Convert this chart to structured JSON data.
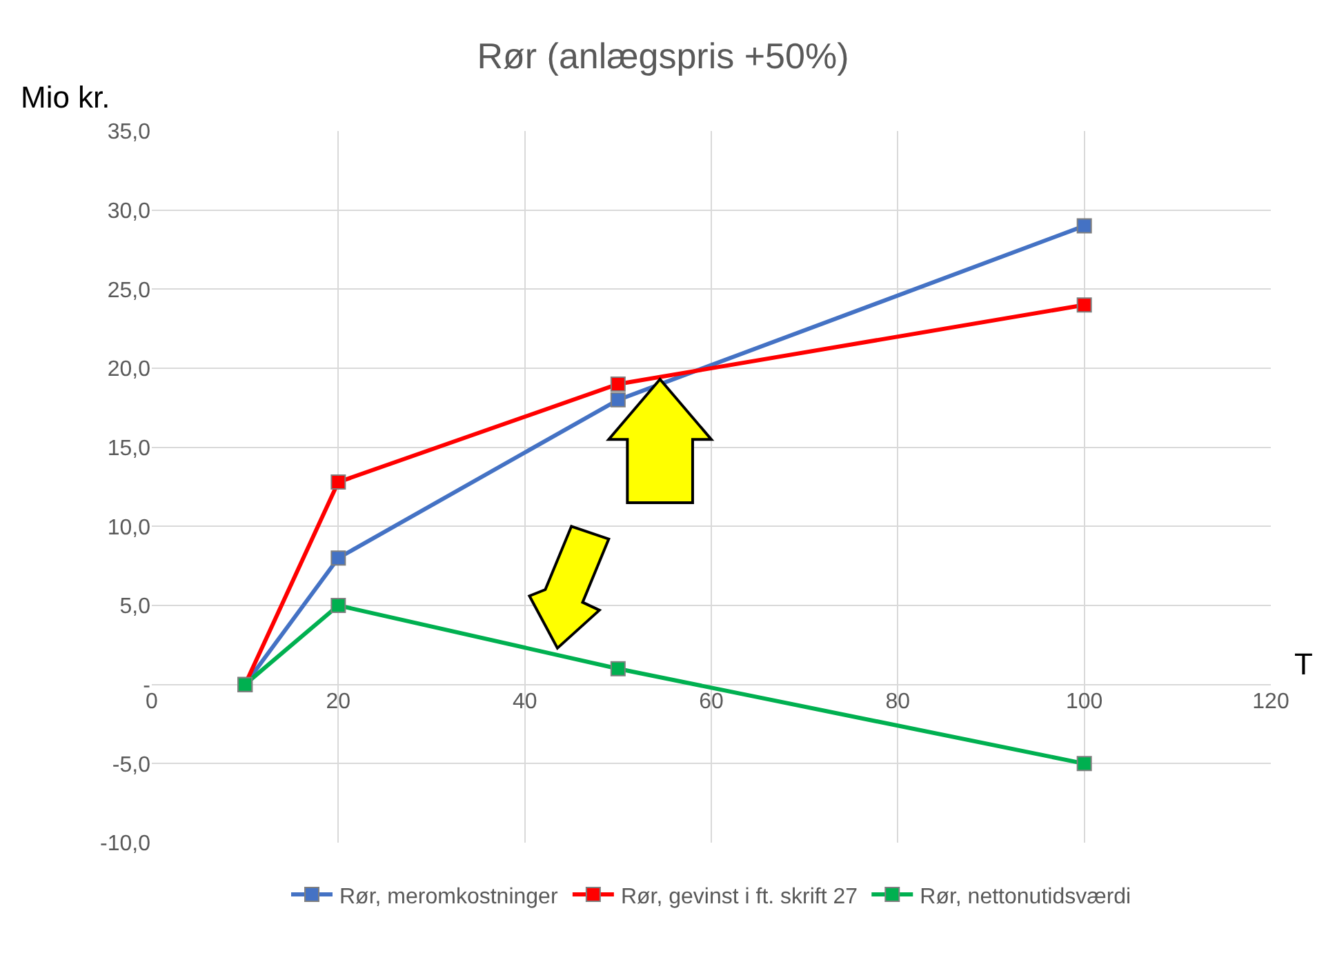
{
  "chart_data": {
    "type": "line",
    "title": "Rør (anlægspris +50%)",
    "xlabel": "T",
    "ylabel": "Mio kr.",
    "x": [
      10,
      20,
      50,
      100
    ],
    "series": [
      {
        "name": "Rør, meromkostninger",
        "color": "#4472c4",
        "values": [
          0,
          8,
          18,
          29
        ]
      },
      {
        "name": "Rør, gevinst i ft. skrift 27",
        "color": "#ff0000",
        "values": [
          0,
          12.8,
          19,
          24
        ]
      },
      {
        "name": "Rør, nettonutidsværdi",
        "color": "#00b050",
        "values": [
          0,
          5,
          1,
          -5
        ]
      }
    ],
    "xlim": [
      0,
      120
    ],
    "xticks": [
      0,
      20,
      40,
      60,
      80,
      100,
      120
    ],
    "ylim": [
      -10,
      35
    ],
    "yticks": [
      {
        "value": -10,
        "label": "-10,0"
      },
      {
        "value": -5,
        "label": "-5,0"
      },
      {
        "value": 0,
        "label": "-"
      },
      {
        "value": 5,
        "label": "5,0"
      },
      {
        "value": 10,
        "label": "10,0"
      },
      {
        "value": 15,
        "label": "15,0"
      },
      {
        "value": 20,
        "label": "20,0"
      },
      {
        "value": 25,
        "label": "25,0"
      },
      {
        "value": 30,
        "label": "30,0"
      },
      {
        "value": 35,
        "label": "35,0"
      }
    ],
    "grid": true,
    "legend": "bottom",
    "marker": "square",
    "line_style": "solid"
  }
}
